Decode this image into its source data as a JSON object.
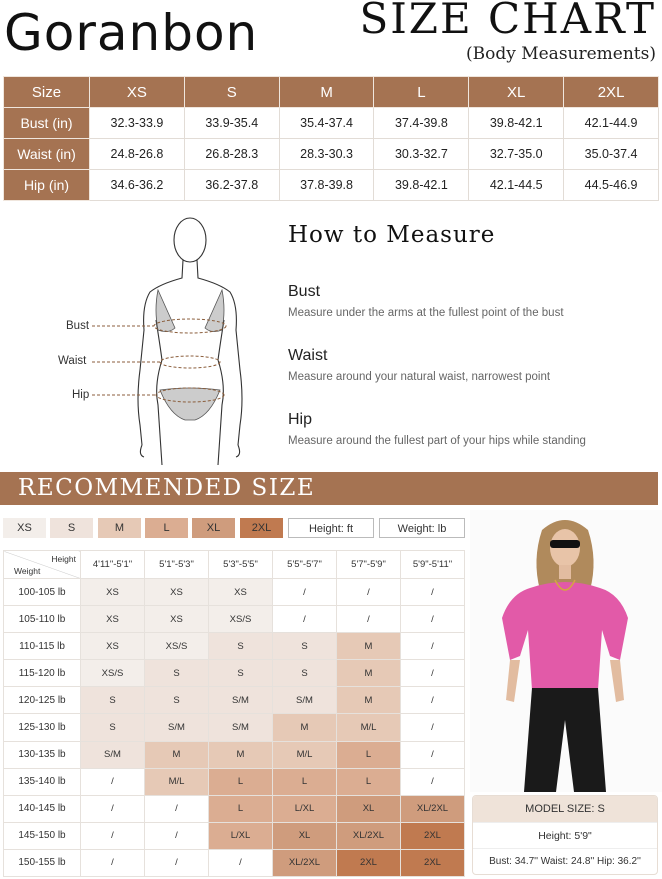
{
  "brand": "Goranbon",
  "title": "SIZE CHART",
  "subtitle": "(Body Measurements)",
  "body_table": {
    "headers": [
      "Size",
      "XS",
      "S",
      "M",
      "L",
      "XL",
      "2XL"
    ],
    "rows": [
      {
        "label": "Bust (in)",
        "values": [
          "32.3-33.9",
          "33.9-35.4",
          "35.4-37.4",
          "37.4-39.8",
          "39.8-42.1",
          "42.1-44.9"
        ]
      },
      {
        "label": "Waist (in)",
        "values": [
          "24.8-26.8",
          "26.8-28.3",
          "28.3-30.3",
          "30.3-32.7",
          "32.7-35.0",
          "35.0-37.4"
        ]
      },
      {
        "label": "Hip (in)",
        "values": [
          "34.6-36.2",
          "36.2-37.8",
          "37.8-39.8",
          "39.8-42.1",
          "42.1-44.5",
          "44.5-46.9"
        ]
      }
    ]
  },
  "how_to": {
    "title": "How to Measure",
    "figure_labels": [
      "Bust",
      "Waist",
      "Hip"
    ],
    "items": [
      {
        "name": "Bust",
        "desc": "Measure under the arms at the fullest point of the bust"
      },
      {
        "name": "Waist",
        "desc": "Measure around your natural waist, narrowest point"
      },
      {
        "name": "Hip",
        "desc": "Measure around the fullest part of your hips while standing"
      }
    ]
  },
  "recommended": {
    "title": "RECOMMENDED SIZE",
    "legend": [
      {
        "label": "XS",
        "color": "#f3eeea"
      },
      {
        "label": "S",
        "color": "#efe3dc"
      },
      {
        "label": "M",
        "color": "#e6c9b6"
      },
      {
        "label": "L",
        "color": "#dbad92"
      },
      {
        "label": "XL",
        "color": "#cf9c7d"
      },
      {
        "label": "2XL",
        "color": "#c07a50"
      }
    ],
    "height_unit": "Height: ft",
    "weight_unit": "Weight: lb",
    "corner_height": "Height",
    "corner_weight": "Weight",
    "heights": [
      "4'11\"-5'1\"",
      "5'1\"-5'3\"",
      "5'3\"-5'5\"",
      "5'5\"-5'7\"",
      "5'7\"-5'9\"",
      "5'9\"-5'11\""
    ],
    "rows": [
      {
        "weight": "100-105 lb",
        "cells": [
          "XS",
          "XS",
          "XS",
          "/",
          "/",
          "/"
        ],
        "tones": [
          "XS",
          "XS",
          "XS",
          "",
          "",
          ""
        ]
      },
      {
        "weight": "105-110 lb",
        "cells": [
          "XS",
          "XS",
          "XS/S",
          "/",
          "/",
          "/"
        ],
        "tones": [
          "XS",
          "XS",
          "XS",
          "",
          "",
          ""
        ]
      },
      {
        "weight": "110-115 lb",
        "cells": [
          "XS",
          "XS/S",
          "S",
          "S",
          "M",
          "/"
        ],
        "tones": [
          "XS",
          "XS",
          "S",
          "S",
          "M",
          ""
        ]
      },
      {
        "weight": "115-120 lb",
        "cells": [
          "XS/S",
          "S",
          "S",
          "S",
          "M",
          "/"
        ],
        "tones": [
          "XS",
          "S",
          "S",
          "S",
          "M",
          ""
        ]
      },
      {
        "weight": "120-125 lb",
        "cells": [
          "S",
          "S",
          "S/M",
          "S/M",
          "M",
          "/"
        ],
        "tones": [
          "S",
          "S",
          "S",
          "S",
          "M",
          ""
        ]
      },
      {
        "weight": "125-130 lb",
        "cells": [
          "S",
          "S/M",
          "S/M",
          "M",
          "M/L",
          "/"
        ],
        "tones": [
          "S",
          "S",
          "S",
          "M",
          "M",
          ""
        ]
      },
      {
        "weight": "130-135 lb",
        "cells": [
          "S/M",
          "M",
          "M",
          "M/L",
          "L",
          "/"
        ],
        "tones": [
          "S",
          "M",
          "M",
          "M",
          "L",
          ""
        ]
      },
      {
        "weight": "135-140 lb",
        "cells": [
          "/",
          "M/L",
          "L",
          "L",
          "L",
          "/"
        ],
        "tones": [
          "",
          "M",
          "L",
          "L",
          "L",
          ""
        ]
      },
      {
        "weight": "140-145 lb",
        "cells": [
          "/",
          "/",
          "L",
          "L/XL",
          "XL",
          "XL/2XL"
        ],
        "tones": [
          "",
          "",
          "L",
          "L",
          "XL",
          "XL"
        ]
      },
      {
        "weight": "145-150 lb",
        "cells": [
          "/",
          "/",
          "L/XL",
          "XL",
          "XL/2XL",
          "2XL"
        ],
        "tones": [
          "",
          "",
          "L",
          "XL",
          "XL",
          "2XL"
        ]
      },
      {
        "weight": "150-155 lb",
        "cells": [
          "/",
          "/",
          "/",
          "XL/2XL",
          "2XL",
          "2XL"
        ],
        "tones": [
          "",
          "",
          "",
          "XL",
          "2XL",
          "2XL"
        ]
      }
    ]
  },
  "model": {
    "size": "MODEL SIZE: S",
    "height": "Height: 5'9\"",
    "measurements": "Bust: 34.7'' Waist: 24.8'' Hip: 36.2''"
  },
  "colors": {
    "accent": "#a57352",
    "top": "#e25aa8"
  }
}
